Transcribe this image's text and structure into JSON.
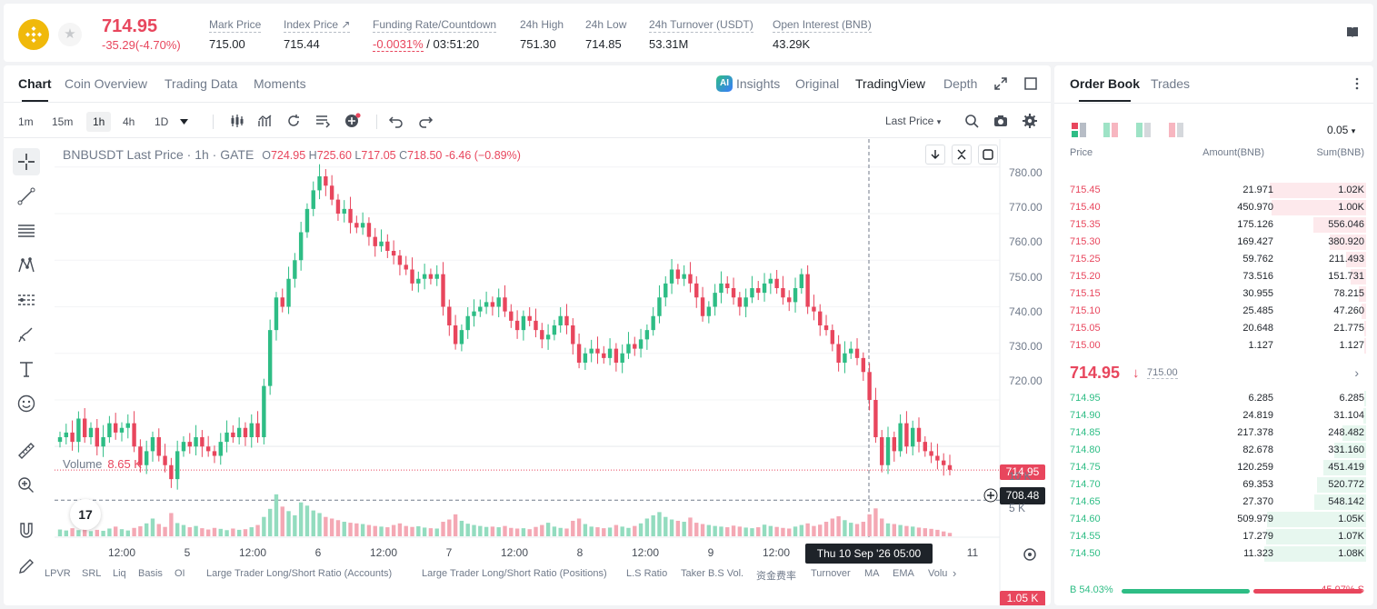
{
  "ticker": {
    "last_price": "714.95",
    "change": "-35.29(-4.70%)",
    "stats": [
      {
        "label": "Mark Price",
        "value": "715.00"
      },
      {
        "label": "Index Price ↗",
        "value": "715.44"
      },
      {
        "label": "Funding Rate/Countdown",
        "value_rate": "-0.0031%",
        "value_count": " / 03:51:20"
      },
      {
        "label": "24h High",
        "value": "751.30"
      },
      {
        "label": "24h Low",
        "value": "714.85"
      },
      {
        "label": "24h Turnover (USDT)",
        "value": "53.31M"
      },
      {
        "label": "Open Interest (BNB)",
        "value": "43.29K"
      }
    ]
  },
  "chart_tabs": [
    "Chart",
    "Coin Overview",
    "Trading Data",
    "Moments"
  ],
  "view_tabs": [
    "Insights",
    "Original",
    "TradingView",
    "Depth"
  ],
  "ai_badge": "AI",
  "timeframes": [
    "1m",
    "15m",
    "1h",
    "4h",
    "1D"
  ],
  "active_timeframe": "1h",
  "price_source": "Last Price",
  "legend": {
    "symbol": "BNBUSDT Last Price · 1h · GATE",
    "o": "724.95",
    "h": "725.60",
    "l": "717.05",
    "c": "718.50",
    "chg": "-6.46 (−0.89%)"
  },
  "volume_legend": {
    "label": "Volume",
    "value": "8.65 K"
  },
  "price_axis": [
    "780.00",
    "770.00",
    "760.00",
    "750.00",
    "740.00",
    "730.00",
    "720.00"
  ],
  "volume_axis": [
    "10 K",
    "5 K"
  ],
  "time_axis": [
    "12:00",
    "5",
    "12:00",
    "6",
    "12:00",
    "7",
    "12:00",
    "8",
    "12:00",
    "9",
    "12:00",
    "11"
  ],
  "price_tag": "714.95",
  "crosshair_tag": "708.48",
  "volume_tag": "1.05 K",
  "crosshair_date": "Thu 10 Sep '26   05:00",
  "tv_logo": "17",
  "indicators": [
    "LPVR",
    "SRL",
    "Liq",
    "Basis",
    "OI",
    "Large Trader Long/Short Ratio (Accounts)",
    "Large Trader Long/Short Ratio (Positions)",
    "L.S Ratio",
    "Taker B.S Vol.",
    "资金费率",
    "Turnover",
    "MA",
    "EMA",
    "Volu"
  ],
  "colors": {
    "up": "#2ebd85",
    "down": "#e8465d",
    "brand": "#f0b90b"
  },
  "chart_data": {
    "type": "candlestick",
    "title": "BNBUSDT Last Price · 1h · GATE",
    "y_range": [
      705,
      785
    ],
    "candles_close": [
      722,
      723,
      721,
      726,
      722,
      724,
      720,
      722,
      725,
      723,
      724,
      725,
      720,
      716,
      719,
      722,
      718,
      716,
      713,
      719,
      721,
      720,
      722,
      720,
      719,
      718,
      721,
      723,
      722,
      724,
      722,
      725,
      722,
      733,
      745,
      752,
      750,
      756,
      760,
      766,
      771,
      775,
      778,
      776,
      773,
      770,
      771,
      768,
      767,
      768,
      765,
      763,
      764,
      762,
      761,
      759,
      758,
      755,
      756,
      757,
      756,
      757,
      750,
      746,
      742,
      745,
      748,
      749,
      750,
      751,
      750,
      752,
      749,
      747,
      745,
      748,
      747,
      745,
      743,
      744,
      746,
      748,
      746,
      742,
      738,
      740,
      741,
      740,
      739,
      741,
      738,
      740,
      742,
      741,
      743,
      745,
      748,
      752,
      755,
      758,
      756,
      757,
      755,
      752,
      748,
      750,
      753,
      755,
      754,
      752,
      750,
      752,
      754,
      753,
      755,
      756,
      754,
      752,
      751,
      754,
      757,
      750,
      749,
      746,
      745,
      742,
      738,
      740,
      741,
      739,
      736,
      730,
      722,
      716,
      722,
      719,
      725,
      720,
      724,
      721,
      719,
      718,
      717,
      716,
      715
    ],
    "volume_k": [
      2.1,
      1.8,
      2.5,
      1.9,
      2.2,
      1.6,
      2.0,
      1.7,
      2.4,
      3.0,
      2.2,
      1.8,
      2.6,
      3.1,
      4.0,
      5.5,
      3.8,
      2.9,
      7.2,
      4.1,
      3.5,
      2.8,
      3.2,
      2.5,
      2.1,
      2.6,
      2.3,
      1.9,
      2.4,
      2.0,
      2.2,
      2.8,
      3.5,
      6.0,
      8.5,
      13.0,
      9.2,
      7.8,
      6.5,
      10.5,
      9.5,
      8.0,
      7.2,
      6.0,
      5.5,
      5.0,
      4.5,
      4.2,
      4.0,
      3.8,
      3.5,
      3.2,
      3.0,
      2.8,
      3.5,
      4.0,
      3.2,
      2.9,
      3.1,
      2.7,
      2.5,
      2.4,
      4.5,
      5.2,
      6.8,
      4.8,
      3.9,
      3.5,
      3.2,
      2.9,
      3.0,
      2.8,
      3.2,
      2.6,
      2.4,
      2.5,
      2.2,
      2.9,
      3.5,
      4.2,
      3.0,
      2.6,
      2.4,
      4.8,
      5.5,
      3.8,
      3.0,
      2.8,
      2.5,
      2.7,
      3.5,
      3.0,
      2.6,
      3.2,
      4.0,
      5.5,
      6.5,
      7.5,
      6.0,
      5.2,
      4.8,
      4.5,
      5.8,
      4.2,
      3.8,
      3.5,
      3.2,
      3.0,
      2.8,
      3.3,
      3.0,
      2.7,
      2.5,
      2.8,
      3.6,
      3.2,
      2.9,
      2.6,
      2.4,
      3.0,
      3.5,
      4.0,
      3.2,
      3.6,
      4.5,
      5.5,
      6.2,
      5.0,
      4.2,
      3.8,
      4.5,
      6.8,
      8.65,
      5.5,
      4.0,
      3.8,
      3.5,
      3.2,
      3.0,
      2.7,
      2.5,
      2.3,
      2.0,
      1.5,
      1.05
    ]
  },
  "orderbook": {
    "tabs": [
      "Order Book",
      "Trades"
    ],
    "precision": "0.05",
    "headers": {
      "price": "Price",
      "amount": "Amount(BNB)",
      "sum": "Sum(BNB)"
    },
    "asks": [
      {
        "p": "715.45",
        "a": "21.971",
        "s": "1.02K",
        "w": 0.95
      },
      {
        "p": "715.40",
        "a": "450.970",
        "s": "1.00K",
        "w": 0.93
      },
      {
        "p": "715.35",
        "a": "175.126",
        "s": "556.046",
        "w": 0.52
      },
      {
        "p": "715.30",
        "a": "169.427",
        "s": "380.920",
        "w": 0.36
      },
      {
        "p": "715.25",
        "a": "59.762",
        "s": "211.493",
        "w": 0.2
      },
      {
        "p": "715.20",
        "a": "73.516",
        "s": "151.731",
        "w": 0.15
      },
      {
        "p": "715.15",
        "a": "30.955",
        "s": "78.215",
        "w": 0.07
      },
      {
        "p": "715.10",
        "a": "25.485",
        "s": "47.260",
        "w": 0.045
      },
      {
        "p": "715.05",
        "a": "20.648",
        "s": "21.775",
        "w": 0.02
      },
      {
        "p": "715.00",
        "a": "1.127",
        "s": "1.127",
        "w": 0.002
      }
    ],
    "mid_price": "714.95",
    "mid_arrow": "🡓",
    "mark_price": "715.00",
    "bids": [
      {
        "p": "714.95",
        "a": "6.285",
        "s": "6.285",
        "w": 0.006
      },
      {
        "p": "714.90",
        "a": "24.819",
        "s": "31.104",
        "w": 0.03
      },
      {
        "p": "714.85",
        "a": "217.378",
        "s": "248.482",
        "w": 0.23
      },
      {
        "p": "714.80",
        "a": "82.678",
        "s": "331.160",
        "w": 0.31
      },
      {
        "p": "714.75",
        "a": "120.259",
        "s": "451.419",
        "w": 0.42
      },
      {
        "p": "714.70",
        "a": "69.353",
        "s": "520.772",
        "w": 0.48
      },
      {
        "p": "714.65",
        "a": "27.370",
        "s": "548.142",
        "w": 0.51
      },
      {
        "p": "714.60",
        "a": "509.979",
        "s": "1.05K",
        "w": 0.97
      },
      {
        "p": "714.55",
        "a": "17.279",
        "s": "1.07K",
        "w": 0.98
      },
      {
        "p": "714.50",
        "a": "11.323",
        "s": "1.08K",
        "w": 1.0
      }
    ],
    "buy_ratio": "B 54.03%",
    "sell_ratio": "45.97% S",
    "buy_fraction": 0.5403
  }
}
